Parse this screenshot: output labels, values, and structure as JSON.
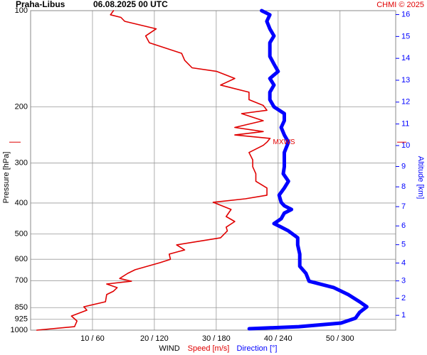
{
  "chart_data": {
    "type": "profile",
    "title": "Praha-Libus",
    "subtitle": "06.08.2025 00 UTC",
    "credit": "CHMI © 2025",
    "y_label": "Pressure [hPa]",
    "y2_label": "Altitude [km]",
    "x_label": "WIND",
    "log_y": true,
    "grid": true,
    "ylim": [
      1000,
      100
    ],
    "yticks": [
      100,
      200,
      300,
      400,
      500,
      600,
      700,
      850,
      925,
      1000
    ],
    "y2ticks": [
      1,
      2,
      3,
      4,
      5,
      6,
      7,
      8,
      9,
      10,
      11,
      12,
      13,
      14,
      15,
      16
    ],
    "y2_color": "#0000ff",
    "xlim": [
      0,
      59
    ],
    "xticks": [
      {
        "value": 10,
        "label": "10 / 60"
      },
      {
        "value": 20,
        "label": "20 / 120"
      },
      {
        "value": 30,
        "label": "30 / 180"
      },
      {
        "value": 40,
        "label": "40 / 240"
      },
      {
        "value": 50,
        "label": "50 / 300"
      }
    ],
    "series": [
      {
        "name": "Speed [m/s]",
        "color": "#e00000",
        "xlim": [
          0,
          59
        ],
        "pressure": [
          1000,
          975,
          936,
          903,
          866,
          845,
          815,
          774,
          755,
          736,
          717,
          703,
          689,
          664,
          647,
          615,
          600,
          578,
          561,
          541,
          514,
          489,
          476,
          457,
          441,
          419,
          398,
          388,
          378,
          359,
          342,
          324,
          308,
          293,
          278,
          264,
          258,
          251,
          245,
          239,
          232,
          221,
          210,
          205,
          198,
          190,
          180,
          171,
          163,
          155,
          151,
          143,
          136,
          126,
          120,
          114,
          108,
          105,
          103,
          100
        ],
        "values": [
          1.0,
          7.1,
          7.5,
          6.6,
          9.1,
          8.6,
          12.1,
          12.3,
          13.4,
          14.0,
          12.3,
          16.3,
          14.4,
          15.7,
          16.9,
          20.9,
          22.6,
          22.4,
          24.9,
          23.6,
          30.7,
          31.8,
          31.6,
          33.0,
          31.6,
          32.4,
          29.5,
          34.7,
          38.2,
          38.2,
          36.4,
          36.4,
          35.9,
          35.9,
          35.3,
          37.6,
          38.2,
          38.7,
          33.0,
          37.6,
          33.0,
          37.6,
          34.1,
          38.2,
          37.6,
          35.3,
          35.3,
          30.7,
          33.0,
          30.1,
          26.1,
          24.9,
          24.4,
          19.2,
          18.6,
          20.3,
          15.2,
          14.6,
          12.9,
          13.4
        ]
      },
      {
        "name": "Direction [°]",
        "color": "#0000ff",
        "xlim": [
          0,
          354
        ],
        "pressure": [
          990,
          975,
          950,
          917,
          880,
          845,
          815,
          774,
          736,
          703,
          664,
          631,
          578,
          541,
          514,
          489,
          476,
          464,
          448,
          430,
          419,
          408,
          398,
          378,
          359,
          342,
          324,
          308,
          293,
          278,
          258,
          245,
          232,
          221,
          210,
          200,
          190,
          180,
          171,
          163,
          155,
          147,
          139,
          133,
          126,
          120,
          114,
          108,
          103,
          100
        ],
        "values": [
          212,
          260,
          301,
          315,
          319,
          326,
          319,
          308,
          294,
          270,
          267,
          261,
          261,
          259,
          259,
          250,
          243,
          236,
          243,
          246,
          253,
          246,
          243,
          241,
          246,
          250,
          245,
          246,
          246,
          246,
          250,
          246,
          243,
          246,
          246,
          236,
          232,
          232,
          236,
          232,
          240,
          236,
          232,
          232,
          232,
          236,
          232,
          229,
          232,
          224
        ]
      }
    ],
    "annotations": [
      {
        "text": "MXWS",
        "pressure": 258,
        "color": "#e00000"
      }
    ]
  }
}
